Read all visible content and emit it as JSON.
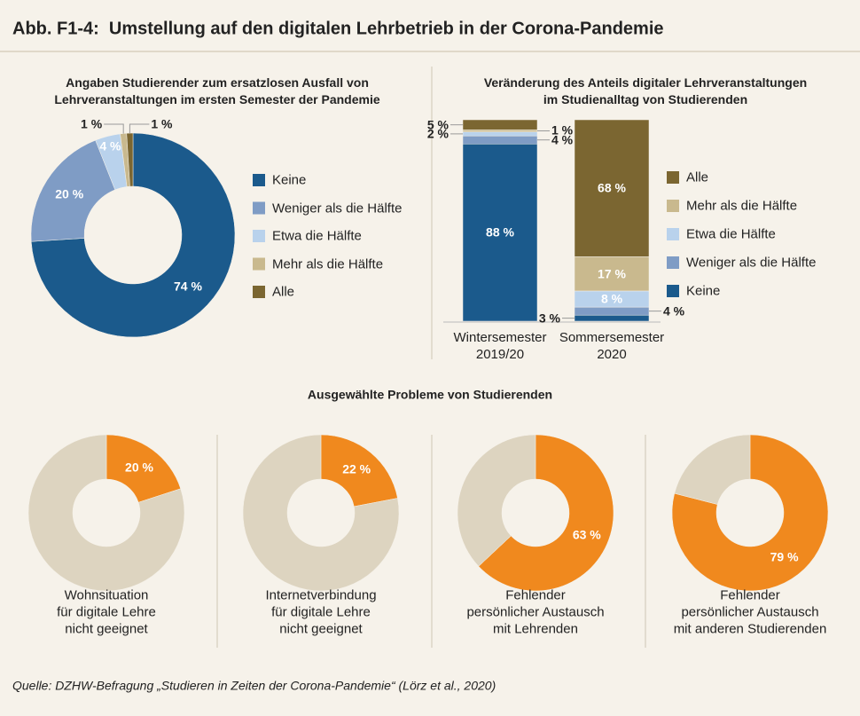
{
  "title": "Abb. F1-4:  Umstellung auf den digitalen Lehrbetrieb in der Corona-Pandemie",
  "section_title": "Ausgewählte Probleme von Studierenden",
  "source": "Quelle: DZHW-Befragung „Studieren in Zeiten der Corona-Pandemie“ (Lörz et al., 2020)",
  "chart_data": [
    {
      "type": "donut",
      "title": "Angaben Studierender zum ersatzlosen Ausfall von\nLehrveranstaltungen im ersten Semester der Pandemie",
      "categories": [
        "Keine",
        "Weniger als die Hälfte",
        "Etwa die Hälfte",
        "Mehr als die Hälfte",
        "Alle"
      ],
      "values": [
        74,
        20,
        4,
        1,
        1
      ],
      "value_labels": [
        "74 %",
        "20 %",
        "4 %",
        "1 %",
        "1 %"
      ],
      "colors": [
        "#1b5a8c",
        "#7f9cc5",
        "#b9d2ec",
        "#c9b98e",
        "#7b6631"
      ],
      "legend": "right"
    },
    {
      "type": "stacked_bar",
      "title": "Veränderung des Anteils digitaler Lehrveranstaltungen\nim Studienalltag von Studierenden",
      "categories": [
        "Wintersemester\n2019/20",
        "Sommersemester\n2020"
      ],
      "series": [
        {
          "name": "Keine",
          "color": "#1b5a8c",
          "values": [
            88,
            3
          ],
          "value_labels": [
            "88 %",
            "3 %"
          ]
        },
        {
          "name": "Weniger als die Hälfte",
          "color": "#7f9cc5",
          "values": [
            4,
            4
          ],
          "value_labels": [
            "4 %",
            "4 %"
          ]
        },
        {
          "name": "Etwa die Hälfte",
          "color": "#b9d2ec",
          "values": [
            2,
            8
          ],
          "value_labels": [
            "2 %",
            "8 %"
          ]
        },
        {
          "name": "Mehr als die Hälfte",
          "color": "#c9b98e",
          "values": [
            1,
            17
          ],
          "value_labels": [
            "1 %",
            "17 %"
          ]
        },
        {
          "name": "Alle",
          "color": "#7b6631",
          "values": [
            5,
            68
          ],
          "value_labels": [
            "5 %",
            "68 %"
          ]
        }
      ],
      "legend": "right"
    },
    {
      "type": "donut",
      "title": "Wohnsituation\nfür digitale Lehre\nnicht geeignet",
      "values": [
        20,
        80
      ],
      "value_labels": [
        "20 %",
        null
      ],
      "colors": [
        "#f0891e",
        "#ddd4c0"
      ]
    },
    {
      "type": "donut",
      "title": "Internetverbindung\nfür digitale Lehre\nnicht geeignet",
      "values": [
        22,
        78
      ],
      "value_labels": [
        "22 %",
        null
      ],
      "colors": [
        "#f0891e",
        "#ddd4c0"
      ]
    },
    {
      "type": "donut",
      "title": "Fehlender\npersönlicher Austausch\nmit Lehrenden",
      "values": [
        63,
        37
      ],
      "value_labels": [
        "63 %",
        null
      ],
      "colors": [
        "#f0891e",
        "#ddd4c0"
      ]
    },
    {
      "type": "donut",
      "title": "Fehlender\npersönlicher Austausch\nmit anderen Studierenden",
      "values": [
        79,
        21
      ],
      "value_labels": [
        "79 %",
        null
      ],
      "colors": [
        "#f0891e",
        "#ddd4c0"
      ]
    }
  ]
}
